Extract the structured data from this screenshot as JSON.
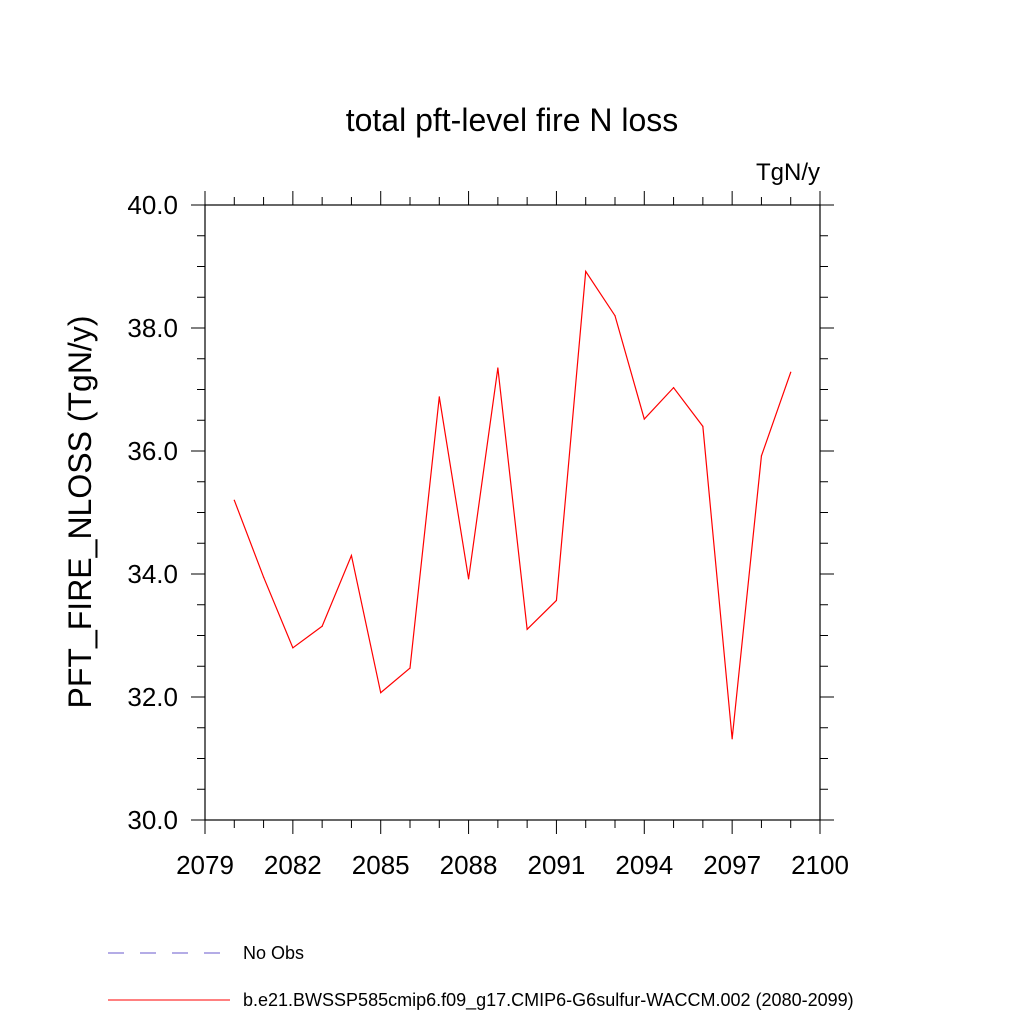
{
  "chart_data": {
    "type": "line",
    "title": "total pft-level fire N loss",
    "units_label": "TgN/y",
    "ylabel": "PFT_FIRE_NLOSS  (TgN/y)",
    "xlabel": "",
    "xlim": [
      2079,
      2100
    ],
    "ylim": [
      30.0,
      40.0
    ],
    "x_ticks": [
      "2079",
      "2082",
      "2085",
      "2088",
      "2091",
      "2094",
      "2097",
      "2100"
    ],
    "y_ticks": [
      "30.0",
      "32.0",
      "34.0",
      "36.0",
      "38.0",
      "40.0"
    ],
    "series": [
      {
        "name": "b.e21.BWSSP585cmip6.f09_g17.CMIP6-G6sulfur-WACCM.002 (2080-2099)",
        "color": "#ff0000",
        "x": [
          2080,
          2081,
          2082,
          2083,
          2084,
          2085,
          2086,
          2087,
          2088,
          2089,
          2090,
          2091,
          2092,
          2093,
          2094,
          2095,
          2096,
          2097,
          2098,
          2099
        ],
        "values": [
          35.2,
          33.95,
          32.8,
          33.15,
          34.3,
          32.07,
          32.47,
          36.88,
          33.92,
          37.35,
          33.1,
          33.57,
          38.92,
          38.2,
          36.52,
          37.03,
          36.4,
          31.32,
          35.92,
          37.28
        ]
      }
    ],
    "legend": [
      {
        "label": "No Obs",
        "style": "dashed",
        "color": "#6a5acd"
      },
      {
        "label": "b.e21.BWSSP585cmip6.f09_g17.CMIP6-G6sulfur-WACCM.002 (2080-2099)",
        "style": "solid",
        "color": "#ff0000"
      }
    ],
    "legend_position": "bottom",
    "grid": false
  }
}
